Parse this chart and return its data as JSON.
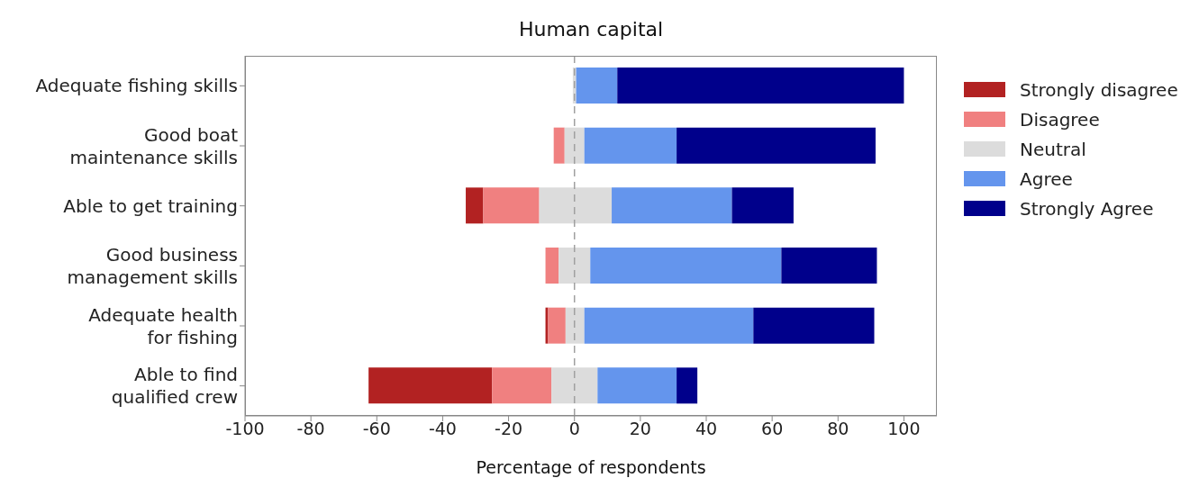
{
  "chart_data": {
    "type": "bar",
    "title": "Human capital",
    "xlabel": "Percentage of respondents",
    "orientation": "horizontal",
    "categories": [
      "Adequate fishing skills",
      "Good boat\nmaintenance skills",
      "Able to get training",
      "Good business\nmanagement skills",
      "Adequate health\nfor fishing",
      "Able to find\nqualified crew"
    ],
    "series": [
      {
        "name": "Strongly disagree",
        "color": "#b22222",
        "base": [
          null,
          null,
          -33,
          null,
          -8.8,
          -62.5
        ],
        "values": [
          null,
          null,
          5.3,
          null,
          0.8,
          37.5
        ]
      },
      {
        "name": "Disagree",
        "color": "#f08080",
        "base": [
          null,
          -6.3,
          -27.7,
          -8.8,
          -8,
          -25
        ],
        "values": [
          null,
          3.3,
          17,
          4,
          5.3,
          18
        ]
      },
      {
        "name": "Neutral",
        "color": "#dcdcdc",
        "base": [
          -0.5,
          -3,
          -10.7,
          -4.8,
          -2.7,
          -7
        ],
        "values": [
          1,
          6,
          22,
          9.6,
          5.7,
          14
        ]
      },
      {
        "name": "Agree",
        "color": "#6495ed",
        "base": [
          0.5,
          3,
          11.3,
          4.8,
          3,
          7
        ],
        "values": [
          12.5,
          28,
          36.5,
          58,
          51.3,
          24
        ]
      },
      {
        "name": "Strongly Agree",
        "color": "#00008b",
        "base": [
          13,
          31,
          47.8,
          62.8,
          54.3,
          31
        ],
        "values": [
          87,
          60.4,
          18.7,
          29,
          36.7,
          6.3
        ]
      }
    ],
    "xlim": [
      -100,
      110
    ],
    "xticks": [
      -100,
      -80,
      -60,
      -40,
      -20,
      0,
      20,
      40,
      60,
      80,
      100
    ],
    "ref_lines": [
      {
        "axis": "x",
        "value": 0,
        "color": "#a0a0a0",
        "line_style": "dashed"
      }
    ],
    "grid": false,
    "legend": "right"
  }
}
